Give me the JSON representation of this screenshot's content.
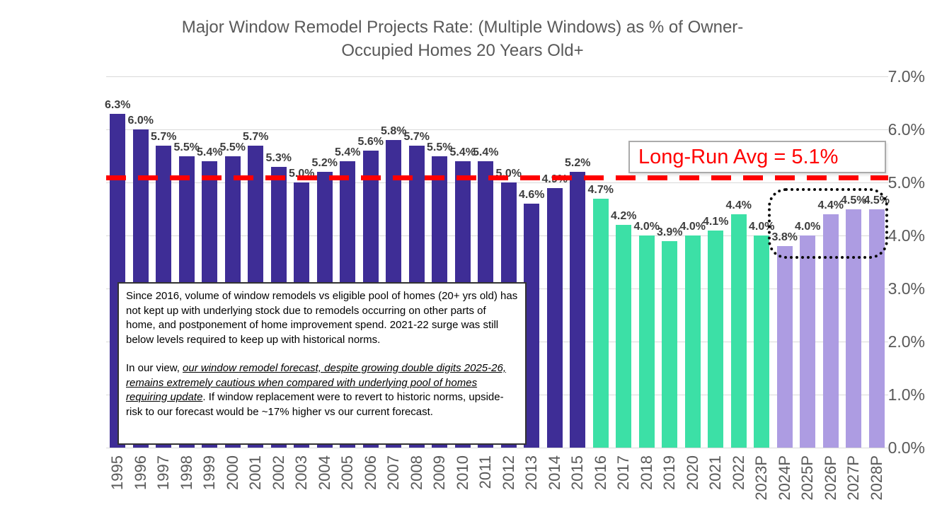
{
  "chart_data": {
    "type": "bar",
    "title": "Major Window Remodel Projects Rate: (Multiple Windows) as % of Owner-Occupied Homes 20 Years Old+",
    "title_line1": "Major Window Remodel Projects Rate: (Multiple Windows) as % of Owner-",
    "title_line2": "Occupied Homes 20 Years Old+",
    "ylim": [
      0,
      7
    ],
    "y_tick_labels": [
      "7.0%",
      "6.0%",
      "5.0%",
      "4.0%",
      "3.0%",
      "2.0%",
      "1.0%",
      "0.0%"
    ],
    "categories": [
      "1995",
      "1996",
      "1997",
      "1998",
      "1999",
      "2000",
      "2001",
      "2002",
      "2003",
      "2004",
      "2005",
      "2006",
      "2007",
      "2008",
      "2009",
      "2010",
      "2011",
      "2012",
      "2013",
      "2014",
      "2015",
      "2016",
      "2017",
      "2018",
      "2019",
      "2020",
      "2021",
      "2022",
      "2023P",
      "2024P",
      "2025P",
      "2026P",
      "2027P",
      "2028P"
    ],
    "values": [
      6.3,
      6.0,
      5.7,
      5.5,
      5.4,
      5.5,
      5.7,
      5.3,
      5.0,
      5.2,
      5.4,
      5.6,
      5.8,
      5.7,
      5.5,
      5.4,
      5.4,
      5.0,
      4.6,
      4.9,
      5.2,
      4.7,
      4.2,
      4.0,
      3.9,
      4.0,
      4.1,
      4.4,
      4.0,
      3.8,
      4.0,
      4.4,
      4.5,
      4.5
    ],
    "bar_labels": [
      "6.3%",
      "6.0%",
      "5.7%",
      "5.5%",
      "5.4%",
      "5.5%",
      "5.7%",
      "5.3%",
      "5.0%",
      "5.2%",
      "5.4%",
      "5.6%",
      "5.8%",
      "5.7%",
      "5.5%",
      "5.4%",
      "5.4%",
      "5.0%",
      "4.6%",
      "4.9%",
      "5.2%",
      "4.7%",
      "4.2%",
      "4.0%",
      "3.9%",
      "4.0%",
      "4.1%",
      "4.4%",
      "4.0%",
      "3.8%",
      "4.0%",
      "4.4%",
      "4.5%",
      "4.5%"
    ],
    "groups": [
      "dark_purple",
      "dark_purple",
      "dark_purple",
      "dark_purple",
      "dark_purple",
      "dark_purple",
      "dark_purple",
      "dark_purple",
      "dark_purple",
      "dark_purple",
      "dark_purple",
      "dark_purple",
      "dark_purple",
      "dark_purple",
      "dark_purple",
      "dark_purple",
      "dark_purple",
      "dark_purple",
      "dark_purple",
      "dark_purple",
      "dark_purple",
      "green",
      "green",
      "green",
      "green",
      "green",
      "green",
      "green",
      "green",
      "light_purple",
      "light_purple",
      "light_purple",
      "light_purple",
      "light_purple"
    ],
    "colors": {
      "dark_purple": "#3E2D96",
      "green": "#3CE0A6",
      "light_purple": "#AD9CE2",
      "reference_red": "#FF0000",
      "gridline": "#D9D9D9",
      "axis_text": "#595959",
      "bar_label_text": "#3D3D3D"
    },
    "reference_line": {
      "value": 5.1,
      "label": "Long-Run Avg = 5.1%"
    },
    "forecast_highlight_box": {
      "encloses": [
        "2024P",
        "2025P",
        "2026P",
        "2027P",
        "2028P"
      ]
    },
    "annotation": {
      "paragraph1": "Since 2016, volume of window remodels vs eligible pool of homes (20+ yrs old) has not kept up with underlying stock due to remodels occurring on other parts of home, and postponement of home improvement spend. 2021-22 surge was still below levels required to keep up with historical norms.",
      "paragraph2_prefix": "In our view, ",
      "paragraph2_emphasis": "our window remodel forecast, despite growing double digits 2025-26, remains extremely cautious when compared with underlying pool of homes requiring update",
      "paragraph2_suffix": ". If window replacement were to revert to historic norms,  upside-risk to our forecast would be ~17% higher vs our current forecast."
    }
  }
}
